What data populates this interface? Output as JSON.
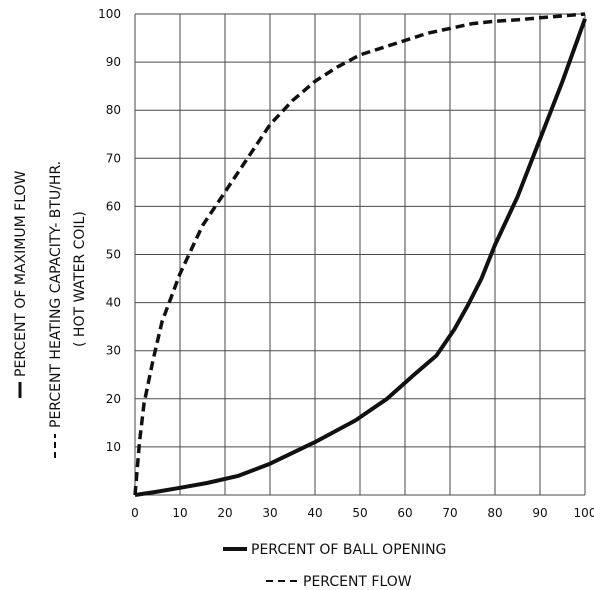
{
  "chart_data": {
    "type": "line",
    "xlabel": "PERCENT OF BALL OPENING",
    "x_legend_text": "PERCENT FLOW",
    "ylabel_lines": [
      "PERCENT OF MAXIMUM FLOW",
      "PERCENT HEATING CAPACITY- BTU/HR.",
      "( HOT WATER COIL)"
    ],
    "xlim": [
      0,
      100
    ],
    "ylim": [
      0,
      100
    ],
    "x_ticks": [
      "0",
      "10",
      "20",
      "30",
      "40",
      "50",
      "60",
      "70",
      "80",
      "90",
      "100"
    ],
    "y_ticks": [
      "10",
      "20",
      "30",
      "40",
      "50",
      "60",
      "70",
      "80",
      "90",
      "100"
    ],
    "grid": true,
    "series": [
      {
        "style": "solid",
        "color": "#111111",
        "x": [
          0,
          5,
          10,
          16,
          23,
          30,
          40,
          49,
          56,
          62,
          67,
          71,
          74,
          77,
          80,
          85,
          90,
          95,
          100
        ],
        "y": [
          0,
          0.7,
          1.5,
          2.5,
          4,
          6.5,
          11,
          15.5,
          20,
          25,
          29,
          34.5,
          39.5,
          45,
          52,
          62,
          74,
          86,
          99
        ]
      },
      {
        "style": "dashed",
        "color": "#111111",
        "x": [
          0,
          1,
          2,
          4,
          6,
          10,
          15,
          20,
          25,
          30,
          35,
          40,
          45,
          50,
          55,
          60,
          65,
          70,
          75,
          80,
          85,
          90,
          95,
          100
        ],
        "y": [
          0,
          11,
          19,
          28,
          36,
          46,
          56,
          63,
          70,
          77,
          82,
          86,
          89,
          91.5,
          93,
          94.5,
          96,
          97,
          98,
          98.5,
          98.8,
          99.2,
          99.6,
          100
        ]
      }
    ]
  }
}
